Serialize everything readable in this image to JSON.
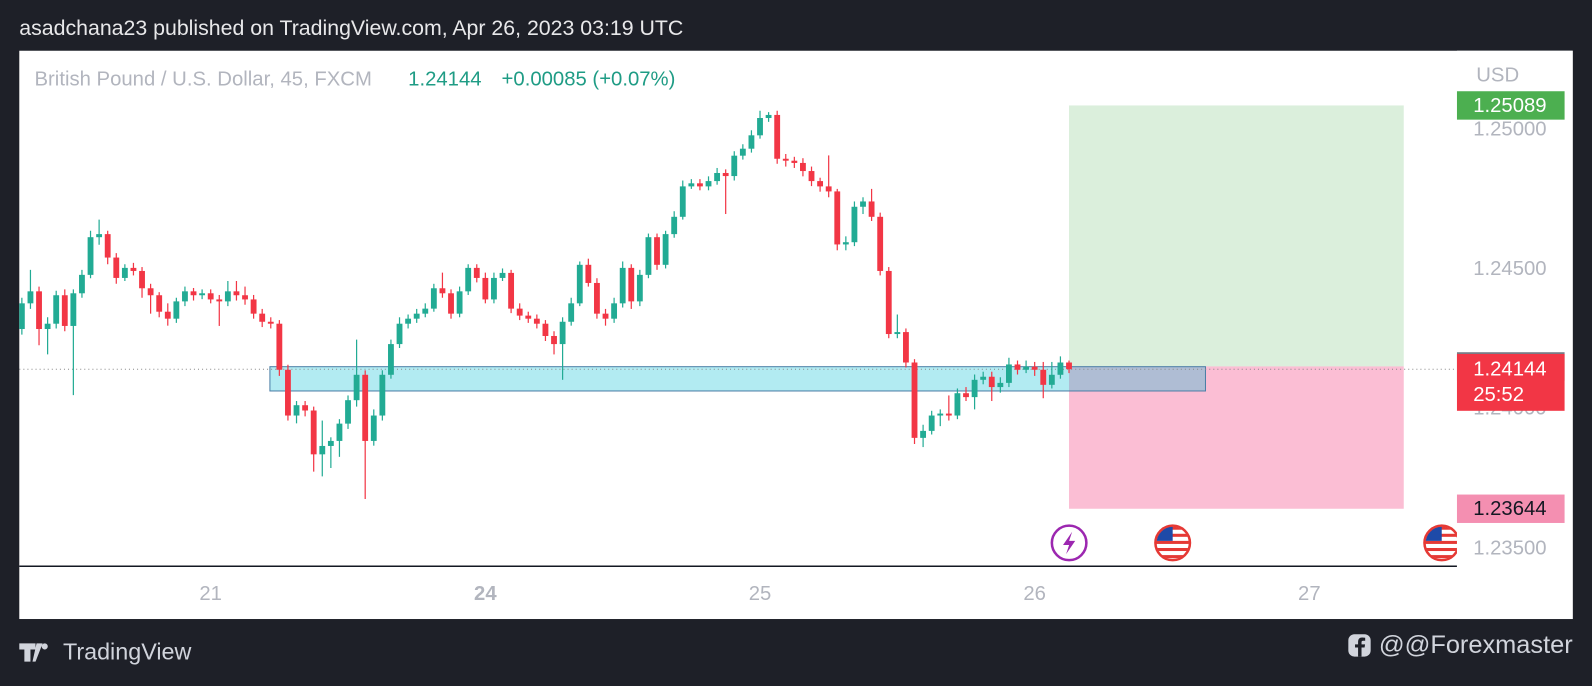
{
  "header": {
    "text": "asadchana23 published on TradingView.com, Apr 26, 2023 03:19 UTC"
  },
  "footer": {
    "brand": "TradingView",
    "author": "@@Forexmaster"
  },
  "chart_data": {
    "type": "candlestick",
    "title": "British Pound / U.S. Dollar, 45, FXCM",
    "last_price": 1.24144,
    "change": "+0.00085 (+0.07%)",
    "countdown": "25:52",
    "currency": "USD",
    "up_color": "#22ab94",
    "down_color": "#f23645",
    "grid": false,
    "xlim": [
      -0.3,
      167.2
    ],
    "xticks": [
      {
        "value": 22,
        "label": "21"
      },
      {
        "value": 54,
        "label": "24",
        "bold": true
      },
      {
        "value": 86,
        "label": "25"
      },
      {
        "value": 118,
        "label": "26"
      },
      {
        "value": 150,
        "label": "27"
      }
    ],
    "ylim": [
      1.23438,
      1.25285
    ],
    "yticks": [
      {
        "value": 1.235,
        "label": "1.23500"
      },
      {
        "value": 1.24,
        "label": "1.24000"
      },
      {
        "value": 1.245,
        "label": "1.24500"
      },
      {
        "value": 1.25,
        "label": "1.25000"
      }
    ],
    "position": {
      "entry": 1.24154,
      "target": 1.25089,
      "stop": 1.23644
    },
    "zone": {
      "top": 1.24153,
      "bottom": 1.24066
    },
    "open": [
      1.24288,
      1.2438,
      1.24423,
      1.24288,
      1.24307,
      1.24409,
      1.24299,
      1.24416,
      1.24482,
      1.24617,
      1.24628,
      1.24544,
      1.24471,
      1.24507,
      1.24496,
      1.24434,
      1.24409,
      1.2435,
      1.24325,
      1.24387,
      1.24423,
      1.24409,
      1.24416,
      1.24394,
      1.24387,
      1.24423,
      1.24409,
      1.24394,
      1.24343,
      1.24314,
      1.24307,
      1.24142,
      1.23978,
      1.24015,
      1.23996,
      1.23839,
      1.23869,
      1.23887,
      1.23949,
      1.24033,
      1.24124,
      1.23887,
      1.23978,
      1.24124,
      1.24234,
      1.24307,
      1.24325,
      1.24343,
      1.24361,
      1.24434,
      1.24416,
      1.24343,
      1.24423,
      1.24507,
      1.24471,
      1.24394,
      1.24471,
      1.24489,
      1.24361,
      1.24336,
      1.24325,
      1.24307,
      1.24263,
      1.24234,
      1.24314,
      1.2438,
      1.24518,
      1.24453,
      1.24343,
      1.24325,
      1.2438,
      1.24507,
      1.24387,
      1.24482,
      1.24617,
      1.24518,
      1.24628,
      1.2469,
      1.24799,
      1.2481,
      1.24799,
      1.24818,
      1.24847,
      1.24836,
      1.24909,
      1.24934,
      1.24982,
      1.25044,
      1.25055,
      1.24898,
      1.24891,
      1.24883,
      1.24854,
      1.24818,
      1.24799,
      1.24781,
      1.24591,
      1.24599,
      1.24726,
      1.24745,
      1.2469,
      1.24496,
      1.2427,
      1.24277,
      1.24168,
      1.23898,
      1.23923,
      1.23978,
      1.23985,
      1.23978,
      1.24058,
      1.24044,
      1.24106,
      1.24117,
      1.2408,
      1.24095,
      1.24161,
      1.24142,
      1.24153,
      1.24142,
      1.24088,
      1.24124,
      1.24168
    ],
    "high": [
      1.244,
      1.245,
      1.2444,
      1.2433,
      1.24425,
      1.2443,
      1.2443,
      1.245,
      1.2464,
      1.2468,
      1.2464,
      1.2456,
      1.2452,
      1.24525,
      1.2451,
      1.2445,
      1.2442,
      1.2438,
      1.244,
      1.2444,
      1.24435,
      1.2443,
      1.2443,
      1.2441,
      1.2446,
      1.2446,
      1.2444,
      1.2441,
      1.2436,
      1.2433,
      1.2432,
      1.2416,
      1.2403,
      1.2403,
      1.2401,
      1.2396,
      1.239,
      1.23965,
      1.2405,
      1.2425,
      1.2414,
      1.24,
      1.2414,
      1.2425,
      1.2433,
      1.2434,
      1.2436,
      1.2438,
      1.2445,
      1.2449,
      1.2443,
      1.2444,
      1.2452,
      1.2452,
      1.2449,
      1.2449,
      1.24505,
      1.245,
      1.2438,
      1.2435,
      1.2434,
      1.2432,
      1.2428,
      1.2433,
      1.244,
      1.2453,
      1.2454,
      1.2447,
      1.2436,
      1.244,
      1.2453,
      1.2452,
      1.245,
      1.2463,
      1.2463,
      1.2464,
      1.2471,
      1.2482,
      1.24825,
      1.24825,
      1.24835,
      1.24865,
      1.2486,
      1.24925,
      1.2495,
      1.25,
      1.2507,
      1.25065,
      1.2507,
      1.24915,
      1.24905,
      1.249,
      1.2487,
      1.2483,
      1.2491,
      1.2479,
      1.2462,
      1.24745,
      1.2476,
      1.2479,
      1.24705,
      1.2451,
      1.2434,
      1.2429,
      1.2418,
      1.23945,
      1.23995,
      1.24,
      1.2405,
      1.24075,
      1.2408,
      1.24125,
      1.24135,
      1.24135,
      1.24115,
      1.24185,
      1.24175,
      1.24175,
      1.2417,
      1.2417,
      1.2417,
      1.2419,
      1.24175
    ],
    "low": [
      1.24268,
      1.2436,
      1.2423,
      1.24197,
      1.2429,
      1.2428,
      1.24051,
      1.244,
      1.2447,
      1.2459,
      1.2452,
      1.2445,
      1.2446,
      1.2448,
      1.244,
      1.24343,
      1.2433,
      1.243,
      1.2431,
      1.2437,
      1.2439,
      1.24395,
      1.2438,
      1.24299,
      1.2437,
      1.2439,
      1.24375,
      1.24325,
      1.24295,
      1.2429,
      1.2412,
      1.2396,
      1.2395,
      1.23975,
      1.23777,
      1.2376,
      1.2379,
      1.2383,
      1.2393,
      1.2401,
      1.23679,
      1.2387,
      1.2396,
      1.2411,
      1.2422,
      1.2429,
      1.2431,
      1.2433,
      1.2435,
      1.244,
      1.24325,
      1.2433,
      1.2441,
      1.24455,
      1.2438,
      1.2438,
      1.2446,
      1.24345,
      1.2432,
      1.2431,
      1.2429,
      1.24245,
      1.24197,
      1.24106,
      1.243,
      1.2437,
      1.2444,
      1.24325,
      1.243,
      1.2431,
      1.24365,
      1.2436,
      1.2437,
      1.2447,
      1.245,
      1.24505,
      1.24615,
      1.2468,
      1.2479,
      1.24785,
      1.24785,
      1.24805,
      1.247,
      1.2482,
      1.24895,
      1.2492,
      1.2497,
      1.2503,
      1.2488,
      1.2487,
      1.24865,
      1.24835,
      1.248,
      1.2478,
      1.2476,
      1.2457,
      1.2457,
      1.24585,
      1.247,
      1.24675,
      1.2448,
      1.24255,
      1.24255,
      1.2415,
      1.23876,
      1.23865,
      1.2391,
      1.2394,
      1.2396,
      1.23965,
      1.2403,
      1.24,
      1.2409,
      1.2403,
      1.2406,
      1.2408,
      1.24125,
      1.2413,
      1.2412,
      1.2404,
      1.24075,
      1.2411,
      1.2413
    ],
    "close": [
      1.2438,
      1.24423,
      1.24288,
      1.24307,
      1.24409,
      1.24299,
      1.24416,
      1.24482,
      1.24617,
      1.24628,
      1.24544,
      1.24471,
      1.24507,
      1.24496,
      1.24434,
      1.24409,
      1.2435,
      1.24325,
      1.24387,
      1.24423,
      1.24409,
      1.24416,
      1.24394,
      1.24387,
      1.24423,
      1.24409,
      1.24394,
      1.24343,
      1.24314,
      1.24307,
      1.24142,
      1.23978,
      1.24015,
      1.23996,
      1.23839,
      1.23869,
      1.23887,
      1.23949,
      1.24033,
      1.24124,
      1.23887,
      1.23978,
      1.24124,
      1.24234,
      1.24307,
      1.24325,
      1.24343,
      1.24361,
      1.24434,
      1.24416,
      1.24343,
      1.24423,
      1.24507,
      1.24471,
      1.24394,
      1.24471,
      1.24489,
      1.24361,
      1.24336,
      1.24325,
      1.24307,
      1.24263,
      1.24234,
      1.24314,
      1.2438,
      1.24518,
      1.24453,
      1.24343,
      1.24325,
      1.2438,
      1.24507,
      1.24387,
      1.24482,
      1.24617,
      1.24518,
      1.24628,
      1.2469,
      1.24799,
      1.2481,
      1.24799,
      1.24818,
      1.24847,
      1.24836,
      1.24909,
      1.24934,
      1.24982,
      1.25044,
      1.25055,
      1.24898,
      1.24891,
      1.24883,
      1.24854,
      1.24818,
      1.24799,
      1.24781,
      1.24591,
      1.24599,
      1.24726,
      1.24745,
      1.2469,
      1.24496,
      1.2427,
      1.24277,
      1.24168,
      1.23898,
      1.23923,
      1.23978,
      1.23985,
      1.23978,
      1.24058,
      1.24044,
      1.24106,
      1.24117,
      1.2408,
      1.24095,
      1.24161,
      1.24142,
      1.24153,
      1.24142,
      1.24088,
      1.24124,
      1.24168,
      1.24144
    ]
  }
}
